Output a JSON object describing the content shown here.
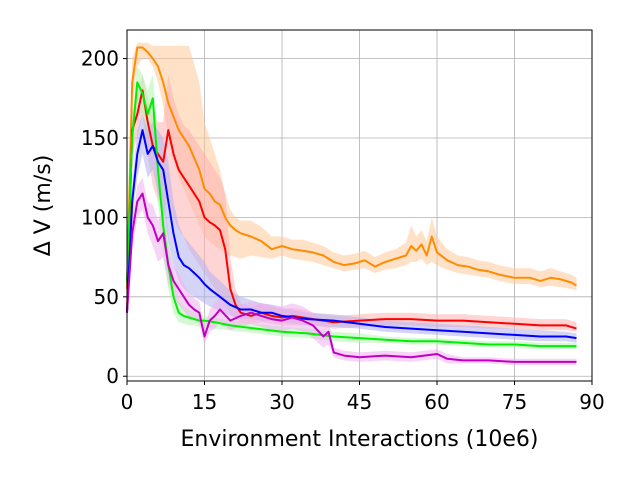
{
  "chart_data": {
    "type": "line",
    "title": "",
    "xlabel": "Environment Interactions (10e6)",
    "ylabel": "Δ V (m/s)",
    "xlim": [
      0,
      90
    ],
    "ylim": [
      -3,
      218
    ],
    "xticks": [
      0,
      15,
      30,
      45,
      60,
      75,
      90
    ],
    "yticks": [
      0,
      50,
      100,
      150,
      200
    ],
    "grid": true,
    "legend": "none",
    "series": [
      {
        "color": "#ff8c00",
        "band_color": "#ffc89a",
        "x": [
          0,
          1,
          2,
          3,
          4,
          5,
          6,
          7,
          8,
          10,
          12,
          14,
          15,
          16,
          17,
          18,
          19,
          20,
          21,
          22,
          24,
          26,
          28,
          30,
          32,
          34,
          36,
          38,
          40,
          42,
          44,
          46,
          48,
          50,
          52,
          54,
          55,
          56,
          57,
          58,
          59,
          60,
          62,
          64,
          66,
          68,
          70,
          72,
          75,
          78,
          80,
          82,
          84,
          86,
          87
        ],
        "values": [
          55,
          185,
          207,
          207,
          204,
          200,
          195,
          185,
          172,
          155,
          145,
          130,
          118,
          115,
          110,
          108,
          100,
          95,
          92,
          90,
          88,
          85,
          80,
          82,
          80,
          79,
          78,
          76,
          72,
          70,
          71,
          73,
          69,
          72,
          74,
          76,
          82,
          79,
          83,
          76,
          88,
          78,
          73,
          70,
          69,
          67,
          66,
          64,
          62,
          62,
          60,
          62,
          61,
          59,
          57
        ],
        "lower": [
          55,
          170,
          195,
          200,
          200,
          195,
          185,
          170,
          150,
          125,
          110,
          95,
          88,
          85,
          82,
          80,
          78,
          76,
          75,
          74,
          76,
          75,
          74,
          76,
          74,
          73,
          72,
          70,
          68,
          66,
          67,
          68,
          65,
          67,
          68,
          70,
          72,
          72,
          74,
          70,
          72,
          70,
          67,
          65,
          64,
          63,
          62,
          60,
          58,
          58,
          56,
          57,
          56,
          55,
          54
        ],
        "upper": [
          60,
          200,
          210,
          210,
          210,
          208,
          208,
          208,
          208,
          208,
          208,
          185,
          160,
          150,
          140,
          130,
          115,
          105,
          100,
          98,
          98,
          94,
          88,
          88,
          86,
          86,
          84,
          82,
          78,
          76,
          77,
          79,
          75,
          78,
          80,
          84,
          95,
          88,
          92,
          85,
          100,
          88,
          80,
          76,
          75,
          73,
          72,
          70,
          68,
          68,
          66,
          68,
          66,
          64,
          62
        ]
      },
      {
        "color": "#ff0000",
        "band_color": "#ffb0b0",
        "x": [
          0,
          1,
          2,
          3,
          4,
          5,
          6,
          7,
          8,
          9,
          10,
          11,
          12,
          13,
          14,
          15,
          16,
          17,
          18,
          19,
          20,
          21,
          22,
          24,
          26,
          28,
          30,
          32,
          34,
          36,
          38,
          40,
          45,
          50,
          55,
          60,
          65,
          70,
          75,
          80,
          85,
          87
        ],
        "values": [
          40,
          155,
          165,
          180,
          160,
          145,
          140,
          135,
          155,
          140,
          130,
          125,
          120,
          115,
          110,
          100,
          97,
          95,
          92,
          80,
          55,
          45,
          40,
          38,
          40,
          38,
          37,
          38,
          37,
          36,
          35,
          34,
          35,
          36,
          36,
          35,
          35,
          34,
          33,
          32,
          32,
          30
        ],
        "lower": [
          38,
          140,
          150,
          165,
          140,
          120,
          110,
          100,
          115,
          100,
          92,
          88,
          80,
          75,
          70,
          65,
          60,
          55,
          50,
          45,
          40,
          36,
          34,
          33,
          34,
          33,
          32,
          32,
          32,
          32,
          31,
          30,
          31,
          32,
          32,
          31,
          31,
          30,
          30,
          29,
          29,
          28
        ],
        "upper": [
          42,
          165,
          178,
          190,
          175,
          165,
          160,
          160,
          190,
          175,
          165,
          158,
          155,
          150,
          145,
          140,
          135,
          130,
          125,
          115,
          75,
          55,
          46,
          43,
          46,
          44,
          42,
          43,
          42,
          40,
          39,
          38,
          39,
          40,
          40,
          39,
          39,
          38,
          37,
          36,
          36,
          34
        ]
      },
      {
        "color": "#00ee00",
        "band_color": "#b0f5b0",
        "x": [
          0,
          1,
          2,
          3,
          4,
          5,
          6,
          7,
          8,
          9,
          10,
          11,
          12,
          13,
          14,
          15,
          17,
          20,
          25,
          30,
          35,
          40,
          45,
          50,
          55,
          60,
          65,
          70,
          75,
          80,
          85,
          87
        ],
        "values": [
          60,
          150,
          185,
          178,
          165,
          175,
          130,
          95,
          70,
          50,
          40,
          38,
          37,
          36,
          35,
          35,
          34,
          32,
          30,
          28,
          27,
          25,
          24,
          23,
          22,
          22,
          21,
          20,
          20,
          19,
          19,
          19
        ],
        "lower": [
          58,
          135,
          170,
          165,
          150,
          160,
          110,
          75,
          55,
          40,
          34,
          33,
          32,
          32,
          31,
          31,
          30,
          29,
          27,
          25,
          24,
          22,
          21,
          21,
          20,
          20,
          19,
          18,
          18,
          17,
          17,
          17
        ],
        "upper": [
          62,
          165,
          195,
          190,
          180,
          190,
          150,
          120,
          90,
          65,
          48,
          44,
          42,
          40,
          39,
          38,
          37,
          35,
          33,
          31,
          30,
          28,
          27,
          25,
          24,
          24,
          23,
          22,
          22,
          21,
          21,
          21
        ]
      },
      {
        "color": "#0000ff",
        "band_color": "#b0b0f0",
        "x": [
          0,
          1,
          2,
          3,
          4,
          5,
          6,
          7,
          8,
          9,
          10,
          11,
          12,
          13,
          14,
          15,
          16,
          18,
          20,
          22,
          24,
          26,
          28,
          30,
          35,
          40,
          45,
          50,
          55,
          60,
          65,
          70,
          75,
          80,
          85,
          87
        ],
        "values": [
          40,
          110,
          140,
          155,
          140,
          145,
          135,
          130,
          110,
          90,
          75,
          70,
          68,
          65,
          62,
          58,
          55,
          50,
          45,
          42,
          42,
          40,
          40,
          38,
          36,
          35,
          33,
          31,
          30,
          29,
          28,
          27,
          26,
          25,
          25,
          24
        ],
        "lower": [
          38,
          100,
          125,
          140,
          125,
          130,
          115,
          105,
          85,
          70,
          60,
          55,
          52,
          50,
          48,
          46,
          44,
          41,
          38,
          36,
          36,
          35,
          35,
          34,
          32,
          31,
          30,
          28,
          27,
          26,
          25,
          24,
          23,
          22,
          22,
          21
        ],
        "upper": [
          42,
          120,
          155,
          165,
          155,
          160,
          155,
          150,
          135,
          110,
          95,
          88,
          84,
          80,
          76,
          72,
          66,
          60,
          54,
          50,
          48,
          46,
          45,
          43,
          40,
          39,
          37,
          35,
          34,
          33,
          32,
          31,
          30,
          29,
          28,
          27
        ]
      },
      {
        "color": "#c000c0",
        "band_color": "#f0b0f0",
        "x": [
          0,
          1,
          2,
          3,
          4,
          5,
          6,
          7,
          8,
          9,
          10,
          11,
          12,
          13,
          14,
          15,
          16,
          17,
          18,
          20,
          22,
          24,
          26,
          28,
          30,
          32,
          34,
          36,
          38,
          39,
          40,
          42,
          45,
          50,
          55,
          60,
          62,
          65,
          70,
          75,
          80,
          85,
          87
        ],
        "values": [
          40,
          90,
          110,
          115,
          100,
          95,
          85,
          90,
          70,
          60,
          55,
          50,
          45,
          42,
          40,
          25,
          35,
          38,
          42,
          35,
          38,
          40,
          38,
          36,
          35,
          37,
          35,
          32,
          25,
          28,
          15,
          13,
          12,
          13,
          12,
          14,
          11,
          10,
          10,
          9,
          9,
          9,
          9
        ],
        "lower": [
          38,
          80,
          100,
          105,
          90,
          82,
          72,
          75,
          58,
          50,
          45,
          41,
          37,
          35,
          33,
          20,
          28,
          30,
          34,
          29,
          31,
          33,
          31,
          29,
          28,
          30,
          28,
          24,
          18,
          20,
          12,
          10,
          9,
          10,
          9,
          11,
          8,
          8,
          8,
          7,
          7,
          7,
          7
        ],
        "upper": [
          42,
          100,
          120,
          125,
          110,
          108,
          98,
          105,
          82,
          70,
          65,
          58,
          53,
          49,
          47,
          30,
          42,
          46,
          50,
          41,
          45,
          47,
          46,
          45,
          44,
          46,
          44,
          40,
          32,
          36,
          18,
          16,
          15,
          16,
          15,
          17,
          14,
          12,
          12,
          11,
          11,
          11,
          11
        ]
      }
    ]
  }
}
